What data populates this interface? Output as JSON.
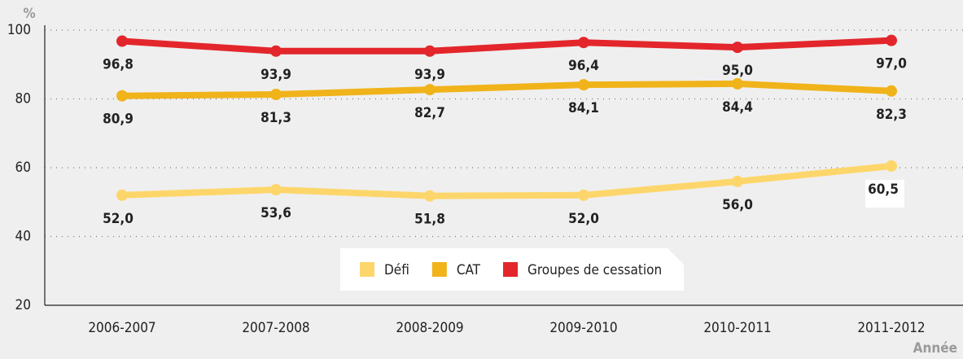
{
  "chart_data": {
    "type": "line",
    "y_label": "%",
    "x_label": "Année",
    "categories": [
      "2006-2007",
      "2007-2008",
      "2008-2009",
      "2009-2010",
      "2010-2011",
      "2011-2012"
    ],
    "series": [
      {
        "name": "Défi",
        "color": "#fdd66b",
        "values": [
          52.0,
          53.6,
          51.8,
          52.0,
          56.0,
          60.5
        ],
        "value_labels": [
          "52,0",
          "53,6",
          "51,8",
          "52,0",
          "56,0",
          "60,5"
        ]
      },
      {
        "name": "CAT",
        "color": "#f0b31a",
        "values": [
          80.9,
          81.3,
          82.7,
          84.1,
          84.4,
          82.3
        ],
        "value_labels": [
          "80,9",
          "81,3",
          "82,7",
          "84,1",
          "84,4",
          "82,3"
        ]
      },
      {
        "name": "Groupes de cessation",
        "color": "#e3262b",
        "values": [
          96.8,
          93.9,
          93.9,
          96.4,
          95.0,
          97.0
        ],
        "value_labels": [
          "96,8",
          "93,9",
          "93,9",
          "96,4",
          "95,0",
          "97,0"
        ]
      }
    ],
    "ylim": [
      20,
      100
    ],
    "yticks": [
      20,
      40,
      60,
      80,
      100
    ],
    "grid": true,
    "legend": "bottom"
  }
}
